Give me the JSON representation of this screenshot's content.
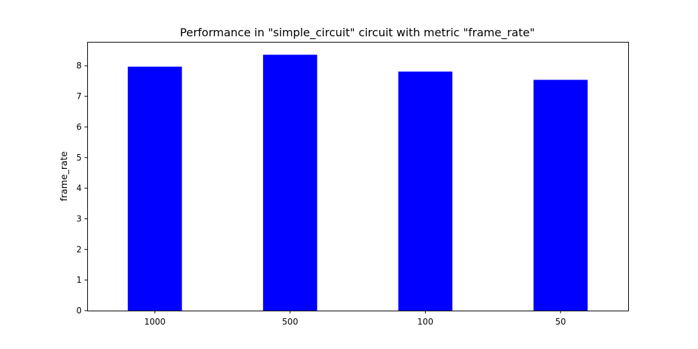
{
  "chart_data": {
    "type": "bar",
    "title": "Performance in \"simple_circuit\" circuit with metric \"frame_rate\"",
    "xlabel": "",
    "ylabel": "frame_rate",
    "categories": [
      "1000",
      "500",
      "100",
      "50"
    ],
    "values": [
      7.97,
      8.36,
      7.81,
      7.54
    ],
    "ylim": [
      0,
      8.78
    ],
    "yticks": [
      0,
      1,
      2,
      3,
      4,
      5,
      6,
      7,
      8
    ],
    "bar_color": "#0000ff",
    "grid": false,
    "legend": "none"
  }
}
